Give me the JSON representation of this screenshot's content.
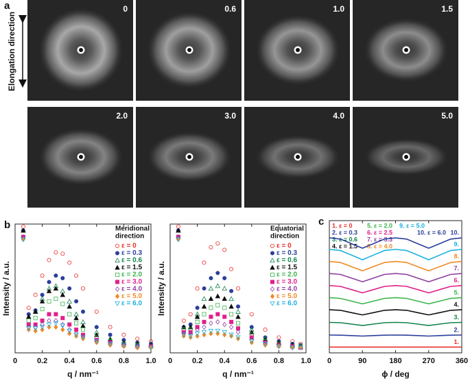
{
  "figure_a": {
    "label": "a",
    "axis_label": "Elongation direction",
    "images": [
      {
        "label": "0"
      },
      {
        "label": "0.6"
      },
      {
        "label": "1.0"
      },
      {
        "label": "1.5"
      },
      {
        "label": "2.0"
      },
      {
        "label": "3.0"
      },
      {
        "label": "4.0"
      },
      {
        "label": "5.0"
      }
    ]
  },
  "chart_data": [
    {
      "type": "scatter",
      "panel_label": "b",
      "annotation": [
        "Meridional",
        "direction"
      ],
      "x_label": "q / nm⁻¹",
      "y_label": "Intensity / a.u.",
      "xlim": [
        0,
        1
      ],
      "ylim": [
        0,
        1
      ],
      "xticks": [
        0,
        0.2,
        0.4,
        0.6,
        0.8,
        {
          "value": 1,
          "label": "1.0"
        }
      ],
      "x": [
        0.06,
        0.1,
        0.15,
        0.2,
        0.25,
        0.3,
        0.35,
        0.4,
        0.45,
        0.5,
        0.6,
        0.7,
        0.8,
        0.9,
        1.0
      ],
      "series": [
        {
          "name": "ε = 0",
          "color": "#e8302a",
          "marker": "circle-open",
          "values": [
            0.98,
            0.35,
            0.45,
            0.6,
            0.72,
            0.78,
            0.77,
            0.7,
            0.6,
            0.5,
            0.32,
            0.2,
            0.14,
            0.11,
            0.09
          ]
        },
        {
          "name": "ε = 0.3",
          "color": "#2a3e9c",
          "marker": "circle",
          "values": [
            0.95,
            0.3,
            0.33,
            0.45,
            0.55,
            0.6,
            0.58,
            0.5,
            0.4,
            0.32,
            0.2,
            0.14,
            0.1,
            0.08,
            0.07
          ]
        },
        {
          "name": "ε = 0.6",
          "color": "#11844a",
          "marker": "triangle-open",
          "values": [
            0.95,
            0.28,
            0.32,
            0.42,
            0.5,
            0.52,
            0.48,
            0.4,
            0.3,
            0.24,
            0.16,
            0.11,
            0.08,
            0.07,
            0.06
          ]
        },
        {
          "name": "ε = 1.5",
          "color": "#111111",
          "marker": "triangle",
          "values": [
            0.95,
            0.28,
            0.32,
            0.4,
            0.48,
            0.5,
            0.45,
            0.36,
            0.27,
            0.21,
            0.14,
            0.1,
            0.08,
            0.07,
            0.06
          ]
        },
        {
          "name": "ε = 2.0",
          "color": "#3ab54a",
          "marker": "square-open",
          "values": [
            0.9,
            0.25,
            0.27,
            0.34,
            0.4,
            0.42,
            0.38,
            0.3,
            0.23,
            0.18,
            0.12,
            0.09,
            0.07,
            0.06,
            0.05
          ]
        },
        {
          "name": "ε = 3.0",
          "color": "#e0208a",
          "marker": "square",
          "values": [
            0.9,
            0.22,
            0.22,
            0.25,
            0.3,
            0.3,
            0.27,
            0.22,
            0.18,
            0.14,
            0.1,
            0.08,
            0.06,
            0.05,
            0.05
          ]
        },
        {
          "name": "ε = 4.0",
          "color": "#8e3fa0",
          "marker": "diamond-open",
          "values": [
            0.9,
            0.2,
            0.2,
            0.22,
            0.25,
            0.25,
            0.22,
            0.18,
            0.15,
            0.12,
            0.09,
            0.07,
            0.06,
            0.05,
            0.04
          ]
        },
        {
          "name": "ε = 5.0",
          "color": "#f08a24",
          "marker": "diamond",
          "values": [
            0.88,
            0.18,
            0.17,
            0.18,
            0.2,
            0.2,
            0.18,
            0.15,
            0.13,
            0.11,
            0.08,
            0.06,
            0.05,
            0.04,
            0.04
          ]
        },
        {
          "name": "ε = 6.0",
          "color": "#1ab0e0",
          "marker": "triangle-down-open",
          "values": [
            0.88,
            0.19,
            0.19,
            0.2,
            0.22,
            0.23,
            0.21,
            0.17,
            0.14,
            0.12,
            0.09,
            0.07,
            0.06,
            0.05,
            0.04
          ]
        }
      ]
    },
    {
      "type": "scatter",
      "annotation": [
        "Equatorial",
        "direction"
      ],
      "x_label": "q / nm⁻¹",
      "y_label": "Intensity / a.u.",
      "xlim": [
        0,
        1
      ],
      "ylim": [
        0,
        1
      ],
      "xticks": [
        0,
        0.2,
        0.4,
        0.6,
        0.8,
        {
          "value": 1,
          "label": "1.0"
        }
      ],
      "x": [
        0.06,
        0.1,
        0.15,
        0.2,
        0.25,
        0.3,
        0.35,
        0.4,
        0.45,
        0.5,
        0.6,
        0.7,
        0.8,
        0.9,
        0.96
      ],
      "series": [
        {
          "name": "ε = 0",
          "color": "#e8302a",
          "marker": "circle-open",
          "values": [
            0.98,
            0.25,
            0.3,
            0.5,
            0.7,
            0.82,
            0.85,
            0.8,
            0.65,
            0.5,
            0.3,
            0.18,
            0.12,
            0.09,
            0.07
          ]
        },
        {
          "name": "ε = 0.3",
          "color": "#2a3e9c",
          "marker": "circle",
          "values": [
            0.95,
            0.2,
            0.22,
            0.35,
            0.5,
            0.58,
            0.62,
            0.58,
            0.48,
            0.36,
            0.2,
            0.12,
            0.09,
            0.07,
            0.06
          ]
        },
        {
          "name": "ε = 0.6",
          "color": "#11844a",
          "marker": "triangle-open",
          "values": [
            0.95,
            0.2,
            0.2,
            0.3,
            0.42,
            0.5,
            0.52,
            0.5,
            0.42,
            0.32,
            0.18,
            0.11,
            0.08,
            0.06,
            0.05
          ]
        },
        {
          "name": "ε = 1.5",
          "color": "#111111",
          "marker": "triangle",
          "values": [
            0.95,
            0.2,
            0.2,
            0.28,
            0.36,
            0.42,
            0.44,
            0.42,
            0.36,
            0.28,
            0.16,
            0.1,
            0.08,
            0.06,
            0.05
          ]
        },
        {
          "name": "ε = 2.0",
          "color": "#3ab54a",
          "marker": "square-open",
          "values": [
            0.9,
            0.18,
            0.18,
            0.24,
            0.3,
            0.35,
            0.37,
            0.35,
            0.3,
            0.23,
            0.14,
            0.09,
            0.07,
            0.05,
            0.05
          ]
        },
        {
          "name": "ε = 3.0",
          "color": "#e0208a",
          "marker": "square",
          "values": [
            0.9,
            0.16,
            0.16,
            0.2,
            0.24,
            0.28,
            0.3,
            0.28,
            0.24,
            0.19,
            0.12,
            0.08,
            0.06,
            0.05,
            0.04
          ]
        },
        {
          "name": "ε = 4.0",
          "color": "#8e3fa0",
          "marker": "diamond-open",
          "values": [
            0.9,
            0.15,
            0.15,
            0.18,
            0.2,
            0.23,
            0.24,
            0.22,
            0.2,
            0.16,
            0.1,
            0.07,
            0.05,
            0.04,
            0.04
          ]
        },
        {
          "name": "ε = 5.0",
          "color": "#f08a24",
          "marker": "diamond",
          "values": [
            0.88,
            0.13,
            0.12,
            0.13,
            0.14,
            0.15,
            0.15,
            0.14,
            0.13,
            0.11,
            0.08,
            0.06,
            0.05,
            0.04,
            0.04
          ]
        },
        {
          "name": "ε = 6.0",
          "color": "#1ab0e0",
          "marker": "triangle-down-open",
          "values": [
            0.88,
            0.14,
            0.13,
            0.15,
            0.16,
            0.17,
            0.17,
            0.16,
            0.14,
            0.12,
            0.09,
            0.07,
            0.05,
            0.04,
            0.04
          ]
        }
      ]
    },
    {
      "type": "line",
      "panel_label": "c",
      "x_label": "ϕ / deg",
      "xlim": [
        0,
        360
      ],
      "ylim": [
        -0.5,
        11
      ],
      "xticks": [
        0,
        90,
        180,
        270,
        360
      ],
      "x": [
        0,
        30,
        60,
        90,
        120,
        150,
        180,
        210,
        240,
        270,
        300,
        330,
        360
      ],
      "series": [
        {
          "name": "1. ε = 0",
          "label": "1.",
          "color": "#e8302a",
          "values": [
            0,
            0,
            0,
            0,
            0,
            0,
            0,
            0,
            0,
            0,
            0,
            0,
            0
          ]
        },
        {
          "name": "2. ε = 0.3",
          "label": "2.",
          "color": "#2a3e9c",
          "values": [
            1.05,
            1.04,
            1.0,
            0.96,
            1.0,
            1.04,
            1.05,
            1.04,
            1.0,
            0.96,
            1.0,
            1.04,
            1.05
          ]
        },
        {
          "name": "3. ε = 0.6",
          "label": "3.",
          "color": "#11844a",
          "values": [
            2.15,
            2.12,
            2.0,
            1.88,
            2.0,
            2.12,
            2.15,
            2.12,
            2.0,
            1.88,
            2.0,
            2.12,
            2.15
          ]
        },
        {
          "name": "4. ε = 1.5",
          "label": "4.",
          "color": "#111111",
          "values": [
            3.25,
            3.2,
            3.0,
            2.8,
            3.0,
            3.2,
            3.25,
            3.2,
            3.0,
            2.8,
            3.0,
            3.2,
            3.25
          ]
        },
        {
          "name": "5. ε = 2.0",
          "label": "5.",
          "color": "#3ab54a",
          "values": [
            4.3,
            4.24,
            4.0,
            3.76,
            4.0,
            4.24,
            4.3,
            4.24,
            4.0,
            3.76,
            4.0,
            4.24,
            4.3
          ]
        },
        {
          "name": "6. ε = 2.5",
          "label": "6.",
          "color": "#e0208a",
          "values": [
            5.35,
            5.28,
            5.0,
            4.72,
            5.0,
            5.28,
            5.35,
            5.28,
            5.0,
            4.72,
            5.0,
            5.28,
            5.35
          ]
        },
        {
          "name": "7. ε = 3.3",
          "label": "7.",
          "color": "#8e3fa0",
          "values": [
            6.4,
            6.32,
            6.0,
            5.68,
            6.0,
            6.32,
            6.4,
            6.32,
            6.0,
            5.68,
            6.0,
            6.32,
            6.4
          ]
        },
        {
          "name": "8. ε = 4.0",
          "label": "8.",
          "color": "#f08a24",
          "values": [
            7.45,
            7.36,
            7.0,
            6.64,
            7.0,
            7.36,
            7.45,
            7.36,
            7.0,
            6.64,
            7.0,
            7.36,
            7.45
          ]
        },
        {
          "name": "9. ε = 5.0",
          "label": "9.",
          "color": "#1ab0e0",
          "values": [
            8.5,
            8.4,
            8.0,
            7.6,
            8.0,
            8.4,
            8.5,
            8.4,
            8.0,
            7.6,
            8.0,
            8.4,
            8.5
          ]
        },
        {
          "name": "10. ε = 6.0",
          "label": "10.",
          "color": "#2a3e9c",
          "values": [
            9.5,
            9.4,
            9.0,
            8.6,
            9.0,
            9.4,
            9.5,
            9.4,
            9.0,
            8.6,
            9.0,
            9.4,
            9.5
          ]
        }
      ]
    }
  ]
}
